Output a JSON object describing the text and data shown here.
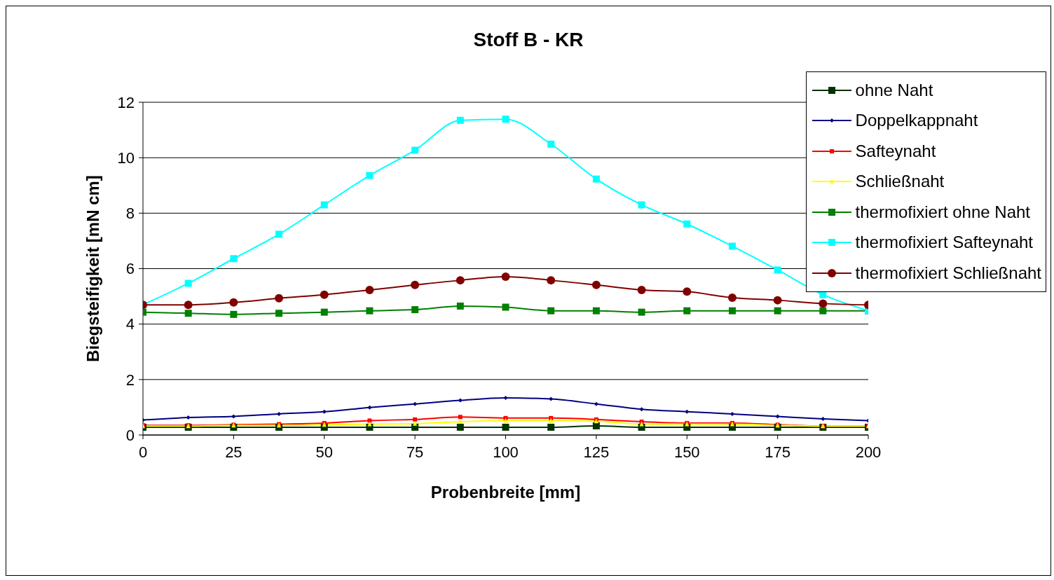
{
  "chart_data": {
    "type": "line",
    "title": "Stoff B - KR",
    "xlabel": "Probenbreite [mm]",
    "ylabel": "Biegsteifigkeit [mN cm]",
    "x": [
      0,
      12.5,
      25,
      37.5,
      50,
      62.5,
      75,
      87.5,
      100,
      112.5,
      125,
      137.5,
      150,
      162.5,
      175,
      187.5,
      200
    ],
    "xlim": [
      0,
      200
    ],
    "xticks": [
      0,
      25,
      50,
      75,
      100,
      125,
      150,
      175,
      200
    ],
    "ylim": [
      0,
      12
    ],
    "yticks": [
      0,
      2,
      4,
      6,
      8,
      10,
      12
    ],
    "grid": "y",
    "legend": "top right",
    "series": [
      {
        "name": "ohne Naht",
        "color": "#003300",
        "marker": "square",
        "values": [
          0.28,
          0.28,
          0.28,
          0.28,
          0.28,
          0.28,
          0.28,
          0.28,
          0.28,
          0.28,
          0.33,
          0.28,
          0.28,
          0.28,
          0.28,
          0.28,
          0.28
        ]
      },
      {
        "name": "Doppelkappnaht",
        "color": "#000080",
        "marker": "diamond",
        "values": [
          0.54,
          0.63,
          0.67,
          0.76,
          0.84,
          0.99,
          1.12,
          1.25,
          1.34,
          1.3,
          1.12,
          0.93,
          0.84,
          0.76,
          0.67,
          0.58,
          0.52
        ]
      },
      {
        "name": "Safteynaht",
        "color": "#ff0000",
        "marker": "square",
        "values": [
          0.35,
          0.35,
          0.37,
          0.39,
          0.43,
          0.52,
          0.56,
          0.65,
          0.61,
          0.61,
          0.56,
          0.48,
          0.43,
          0.43,
          0.37,
          0.32,
          0.32
        ]
      },
      {
        "name": "Schließnaht",
        "color": "#ffff00",
        "marker": "triangle",
        "values": [
          0.32,
          0.32,
          0.35,
          0.35,
          0.37,
          0.39,
          0.41,
          0.48,
          0.52,
          0.52,
          0.5,
          0.39,
          0.39,
          0.39,
          0.35,
          0.32,
          0.32
        ]
      },
      {
        "name": "thermofixiert ohne Naht",
        "color": "#008000",
        "marker": "square",
        "values": [
          4.43,
          4.39,
          4.35,
          4.39,
          4.43,
          4.48,
          4.52,
          4.65,
          4.61,
          4.48,
          4.48,
          4.43,
          4.48,
          4.48,
          4.48,
          4.48,
          4.48
        ]
      },
      {
        "name": "thermofixiert Safteynaht",
        "color": "#00ffff",
        "marker": "square",
        "values": [
          4.7,
          5.47,
          6.36,
          7.24,
          8.3,
          9.36,
          10.27,
          11.35,
          11.39,
          10.49,
          9.23,
          8.3,
          7.61,
          6.81,
          5.95,
          5.06,
          4.48
        ]
      },
      {
        "name": "thermofixiert Schließnaht",
        "color": "#800000",
        "marker": "circle",
        "values": [
          4.69,
          4.69,
          4.78,
          4.93,
          5.06,
          5.23,
          5.41,
          5.58,
          5.71,
          5.58,
          5.41,
          5.23,
          5.17,
          4.95,
          4.86,
          4.74,
          4.69
        ]
      }
    ]
  }
}
